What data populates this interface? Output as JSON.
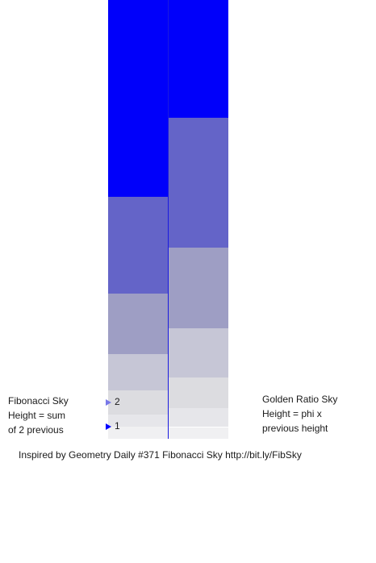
{
  "left_sky": {
    "caption_lines": [
      "Fibonacci Sky",
      "Height = sum",
      "of 2 previous"
    ],
    "bands": [
      {
        "height_units": 1,
        "color": "#f0f0f2"
      },
      {
        "height_units": 1,
        "color": "#e6e6ea"
      },
      {
        "height_units": 2,
        "color": "#dcdce0"
      },
      {
        "height_units": 3,
        "color": "#c6c6d6"
      },
      {
        "height_units": 5,
        "color": "#9e9ec4"
      },
      {
        "height_units": 8,
        "color": "#6464c8"
      },
      {
        "height_units": 13,
        "color": "#0000fa"
      }
    ],
    "markers": [
      {
        "label": "2",
        "color": "#7878e8"
      },
      {
        "label": "1",
        "color": "#0000ff"
      }
    ]
  },
  "right_sky": {
    "caption_lines": [
      "Golden Ratio Sky",
      "Height = phi x",
      "previous height"
    ],
    "bands": [
      {
        "color": "#f0f0f2"
      },
      {
        "color": "#e6e6ea"
      },
      {
        "color": "#dcdce0"
      },
      {
        "color": "#c6c6d6"
      },
      {
        "color": "#9e9ec4"
      },
      {
        "color": "#6464c8"
      },
      {
        "color": "#0000fa"
      }
    ]
  },
  "credit": "Inspired by Geometry Daily #371 Fibonacci Sky http://bit.ly/FibSky"
}
